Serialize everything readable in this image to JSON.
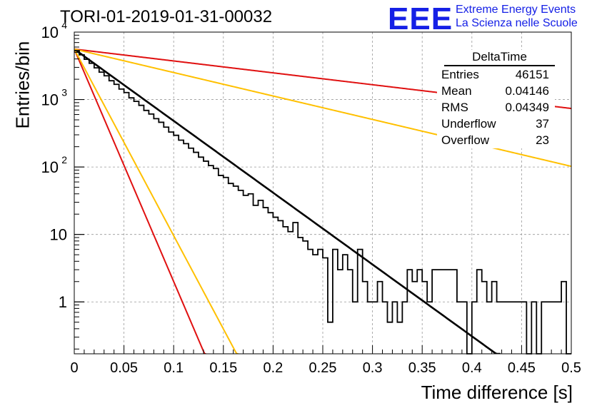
{
  "title": "TORI-01-2019-01-31-00032",
  "logo": {
    "mark": "EEE",
    "line1": "Extreme Energy Events",
    "line2": "La Scienza nelle Scuole"
  },
  "colors": {
    "histogram": "#000000",
    "fit": "#000000",
    "red": "#e01010",
    "yellow": "#ffc000",
    "logo": "#1520e6",
    "grid": "#999999"
  },
  "stats": {
    "title": "DeltaTime",
    "rows": [
      {
        "label": "Entries",
        "value": "46151"
      },
      {
        "label": "Mean",
        "value": "0.04146"
      },
      {
        "label": "RMS",
        "value": "0.04349"
      },
      {
        "label": "Underflow",
        "value": "37"
      },
      {
        "label": "Overflow",
        "value": "23"
      }
    ]
  },
  "chart_data": {
    "type": "histogram",
    "xlabel": "Time difference [s]",
    "ylabel": "Entries/bin",
    "xlim": [
      0,
      0.5
    ],
    "ylim": [
      0.17,
      10000
    ],
    "log_y": true,
    "grid": true,
    "legend": "top-right",
    "x_ticks": [
      "0",
      "0.05",
      "0.1",
      "0.15",
      "0.2",
      "0.25",
      "0.3",
      "0.35",
      "0.4",
      "0.45",
      "0.5"
    ],
    "y_ticks": [
      {
        "value": 1,
        "base": "1",
        "exp": ""
      },
      {
        "value": 10,
        "base": "10",
        "exp": ""
      },
      {
        "value": 100,
        "base": "10",
        "exp": "2"
      },
      {
        "value": 1000,
        "base": "10",
        "exp": "3"
      },
      {
        "value": 10000,
        "base": "10",
        "exp": "4"
      }
    ],
    "bin_width": 0.005,
    "histogram_counts": [
      5300,
      4600,
      3950,
      3450,
      2950,
      2550,
      2250,
      1900,
      1680,
      1430,
      1270,
      1060,
      940,
      820,
      690,
      610,
      520,
      460,
      390,
      330,
      295,
      250,
      222,
      190,
      165,
      140,
      122,
      105,
      95,
      75,
      70,
      57,
      52,
      45,
      38,
      40,
      27,
      32,
      25,
      21,
      18,
      16,
      13,
      11,
      15,
      9,
      8,
      6,
      5,
      6,
      4.5,
      0.5,
      6,
      3,
      5,
      3,
      1,
      6,
      2,
      1,
      1,
      2,
      1,
      0.5,
      1,
      0.5,
      1,
      3,
      2,
      3,
      2,
      1,
      3,
      3,
      3,
      3,
      3,
      1,
      1,
      0,
      1,
      3,
      2,
      1,
      2,
      1,
      1,
      1,
      1,
      1,
      1,
      0,
      1,
      0,
      1,
      1,
      1,
      1,
      2,
      0
    ],
    "fits": [
      {
        "color": "black",
        "y0": 5600,
        "tau": 0.0408
      },
      {
        "color": "red",
        "y0": 5600,
        "tau": 0.2466
      },
      {
        "color": "yellow",
        "y0": 5600,
        "tau": 0.1249
      },
      {
        "color": "red",
        "y0": 5600,
        "tau": 0.0126
      },
      {
        "color": "yellow",
        "y0": 5600,
        "tau": 0.0157
      }
    ]
  }
}
